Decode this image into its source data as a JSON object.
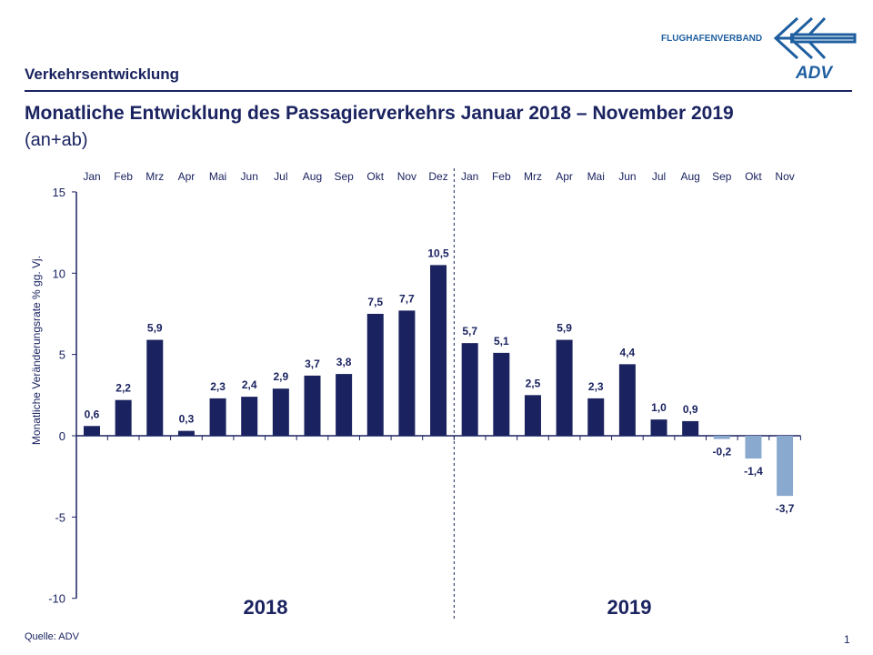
{
  "header": {
    "section": "Verkehrsentwicklung",
    "logo_text": "FLUGHAFENVERBAND",
    "logo_mark": "ADV"
  },
  "title": "Monatliche Entwicklung des Passagierverkehrs  Januar 2018 – November 2019",
  "subtitle": "(an+ab)",
  "footer": {
    "source": "Quelle: ADV",
    "page": "1"
  },
  "colors": {
    "positive": "#1a2360",
    "negative": "#8aa9cf",
    "text": "#1a2360",
    "logo": "#1f5fa0"
  },
  "chart_data": {
    "type": "bar",
    "ylabel": "Monatliche Veränderungsrate % gg. Vj.",
    "ylim": [
      -10,
      15
    ],
    "yticks": [
      15,
      10,
      5,
      0,
      -5,
      -10
    ],
    "categories": [
      "Jan",
      "Feb",
      "Mrz",
      "Apr",
      "Mai",
      "Jun",
      "Jul",
      "Aug",
      "Sep",
      "Okt",
      "Nov",
      "Dez",
      "Jan",
      "Feb",
      "Mrz",
      "Apr",
      "Mai",
      "Jun",
      "Jul",
      "Aug",
      "Sep",
      "Okt",
      "Nov"
    ],
    "values": [
      0.6,
      2.2,
      5.9,
      0.3,
      2.3,
      2.4,
      2.9,
      3.7,
      3.8,
      7.5,
      7.7,
      10.5,
      5.7,
      5.1,
      2.5,
      5.9,
      2.3,
      4.4,
      1.0,
      0.9,
      -0.2,
      -1.4,
      -3.7
    ],
    "data_labels": [
      "0,6",
      "2,2",
      "5,9",
      "0,3",
      "2,3",
      "2,4",
      "2,9",
      "3,7",
      "3,8",
      "7,5",
      "7,7",
      "10,5",
      "5,7",
      "5,1",
      "2,5",
      "5,9",
      "2,3",
      "4,4",
      "1,0",
      "0,9",
      "-0,2",
      "-1,4",
      "-3,7"
    ],
    "groups": [
      {
        "label": "2018",
        "months": 12
      },
      {
        "label": "2019",
        "months": 11
      }
    ],
    "grid": false,
    "legend": "none"
  }
}
